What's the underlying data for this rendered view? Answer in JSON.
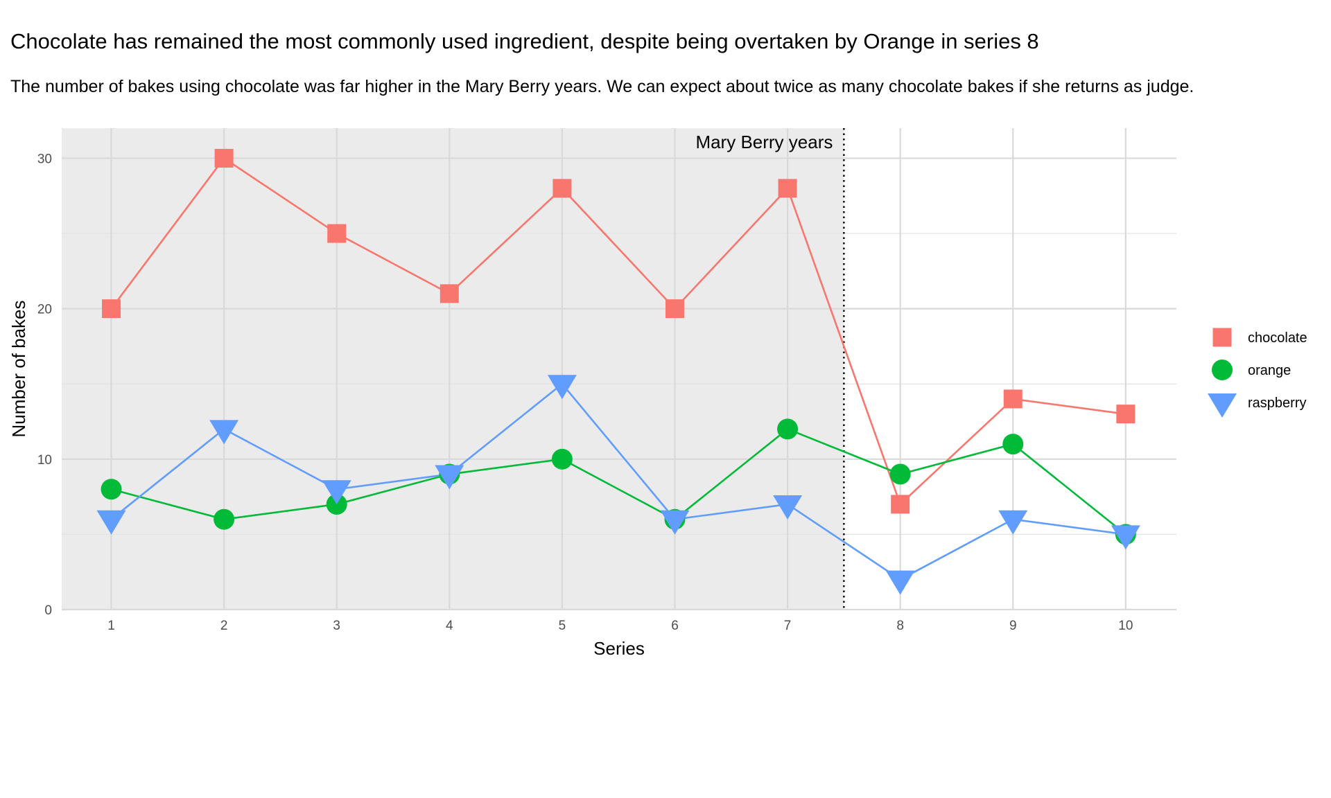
{
  "chart_data": {
    "type": "line",
    "title": "Chocolate has remained the most commonly used ingredient, despite being overtaken by Orange in series 8",
    "subtitle": "The number of bakes using chocolate was far higher in the Mary Berry years. We can expect about twice as many chocolate bakes if she returns as judge.",
    "xlabel": "Series",
    "ylabel": "Number of bakes",
    "x": [
      1,
      2,
      3,
      4,
      5,
      6,
      7,
      8,
      9,
      10
    ],
    "x_tick_labels": [
      "1",
      "2",
      "3",
      "4",
      "5",
      "6",
      "7",
      "8",
      "9",
      "10"
    ],
    "y_ticks": [
      0,
      10,
      20,
      30
    ],
    "y_tick_labels": [
      "0",
      "10",
      "20",
      "30"
    ],
    "xlim": [
      0.56,
      10.45
    ],
    "ylim": [
      0,
      32
    ],
    "grid": true,
    "legend_position": "right",
    "shaded_region": {
      "x_start": 0.56,
      "x_end": 7.5,
      "label": "Mary Berry years",
      "color": "#ebebeb"
    },
    "vline": {
      "x": 7.5,
      "style": "dotted"
    },
    "series": [
      {
        "name": "chocolate",
        "color": "#F8766D",
        "marker": "square",
        "values": [
          20,
          30,
          25,
          21,
          28,
          20,
          28,
          7,
          14,
          13
        ]
      },
      {
        "name": "orange",
        "color": "#00BA38",
        "marker": "circle",
        "values": [
          8,
          6,
          7,
          9,
          10,
          6,
          12,
          9,
          11,
          5
        ]
      },
      {
        "name": "raspberry",
        "color": "#619CFF",
        "marker": "triangle-down",
        "values": [
          6,
          12,
          8,
          9,
          15,
          6,
          7,
          2,
          6,
          5
        ]
      }
    ]
  }
}
